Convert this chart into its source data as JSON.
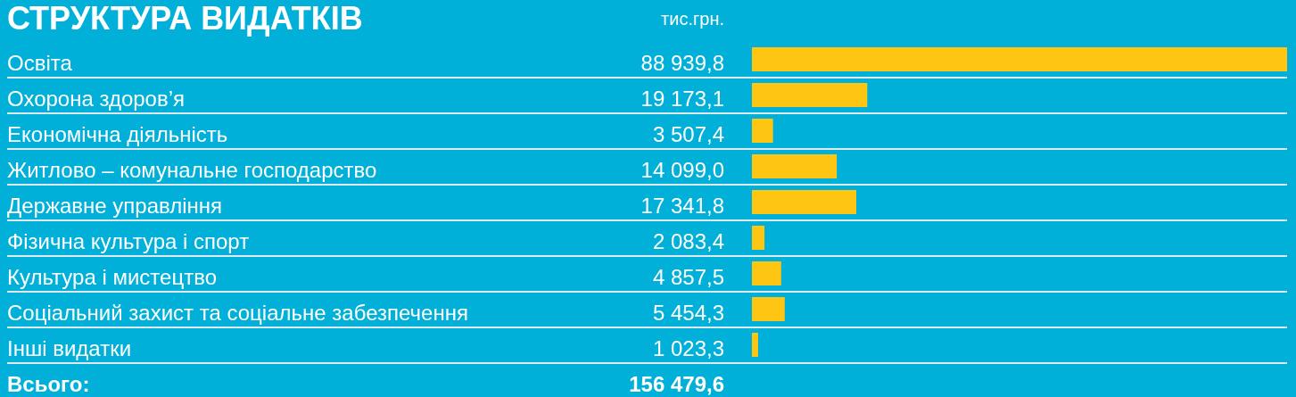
{
  "chart_data": {
    "type": "bar",
    "orientation": "horizontal",
    "title": "СТРУКТУРА ВИДАТКІВ",
    "subtitle": "тис.грн.",
    "categories": [
      "Освіта",
      "Охорона здоров’я",
      "Економічна діяльність",
      "Житлово – комунальне господарство",
      "Державне управління",
      "Фізична культура і спорт",
      "Культура і мистецтво",
      "Соціальний захист та соціальне забезпечення",
      "Інші видатки"
    ],
    "values": [
      88939.8,
      19173.1,
      3507.4,
      14099.0,
      17341.8,
      2083.4,
      4857.5,
      5454.3,
      1023.3
    ],
    "value_labels": [
      "88 939,8",
      "19 173,1",
      "3 507,4",
      "14 099,0",
      "17 341,8",
      "2 083,4",
      "4 857,5",
      "5 454,3",
      "1 023,3"
    ],
    "color": "#ffc513",
    "grid": "y",
    "tick_labels": "y",
    "annotations": [
      "Всього:",
      "156 479,6"
    ]
  }
}
